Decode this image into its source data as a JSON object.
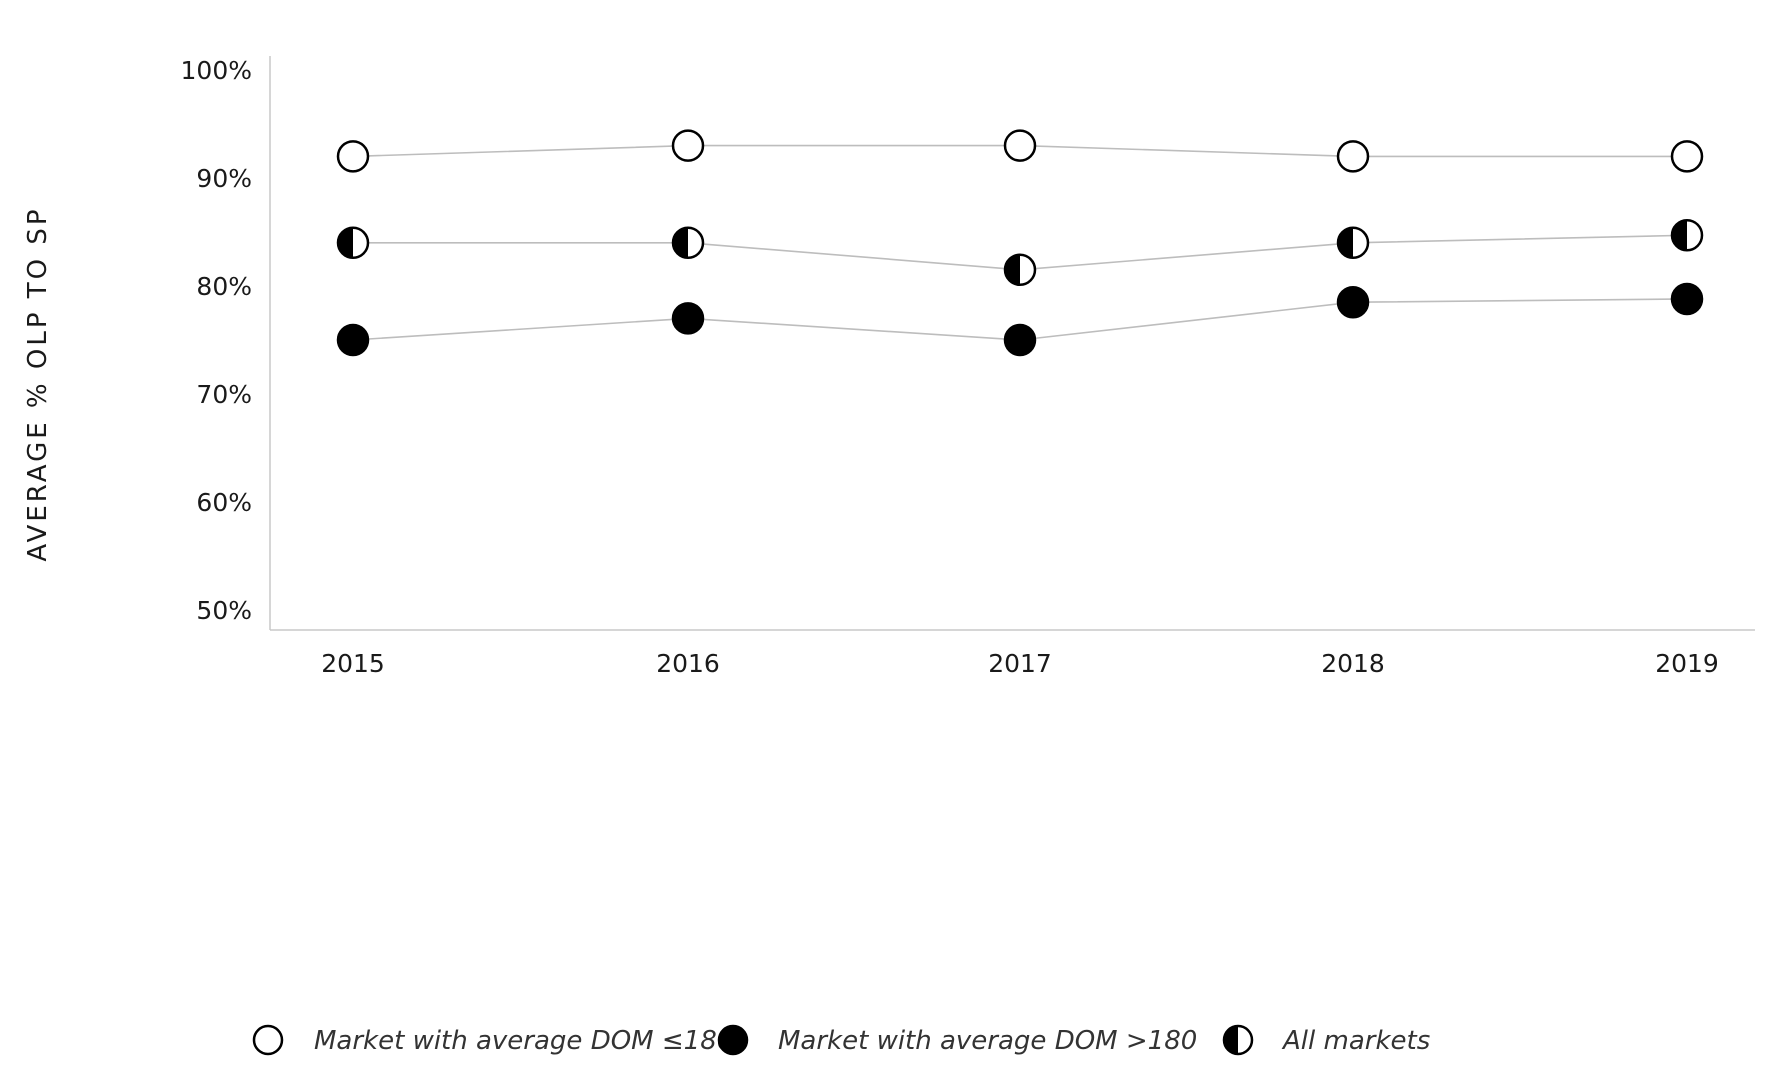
{
  "chart_data": {
    "type": "line",
    "title": "",
    "xlabel": "",
    "ylabel": "AVERAGE % OLP TO SP",
    "categories": [
      "2015",
      "2016",
      "2017",
      "2018",
      "2019"
    ],
    "ylim": [
      50,
      100
    ],
    "y_ticks": [
      50,
      60,
      70,
      80,
      90,
      100
    ],
    "y_tick_labels": [
      "50%",
      "60%",
      "70%",
      "80%",
      "90%",
      "100%"
    ],
    "grid": false,
    "legend_position": "bottom",
    "series": [
      {
        "name": "Market with average DOM ≤180",
        "marker": "open-circle",
        "values": [
          92,
          93,
          93,
          92,
          92
        ]
      },
      {
        "name": "Market with average DOM >180",
        "marker": "filled-circle",
        "values": [
          75,
          77,
          75,
          78.5,
          78.8
        ]
      },
      {
        "name": "All markets",
        "marker": "half-filled-circle",
        "values": [
          84,
          84,
          81.5,
          84,
          84.7
        ]
      }
    ],
    "colors": {
      "line": "#bdbdbd",
      "marker": "#000000",
      "axis": "#c8c8c8"
    }
  }
}
